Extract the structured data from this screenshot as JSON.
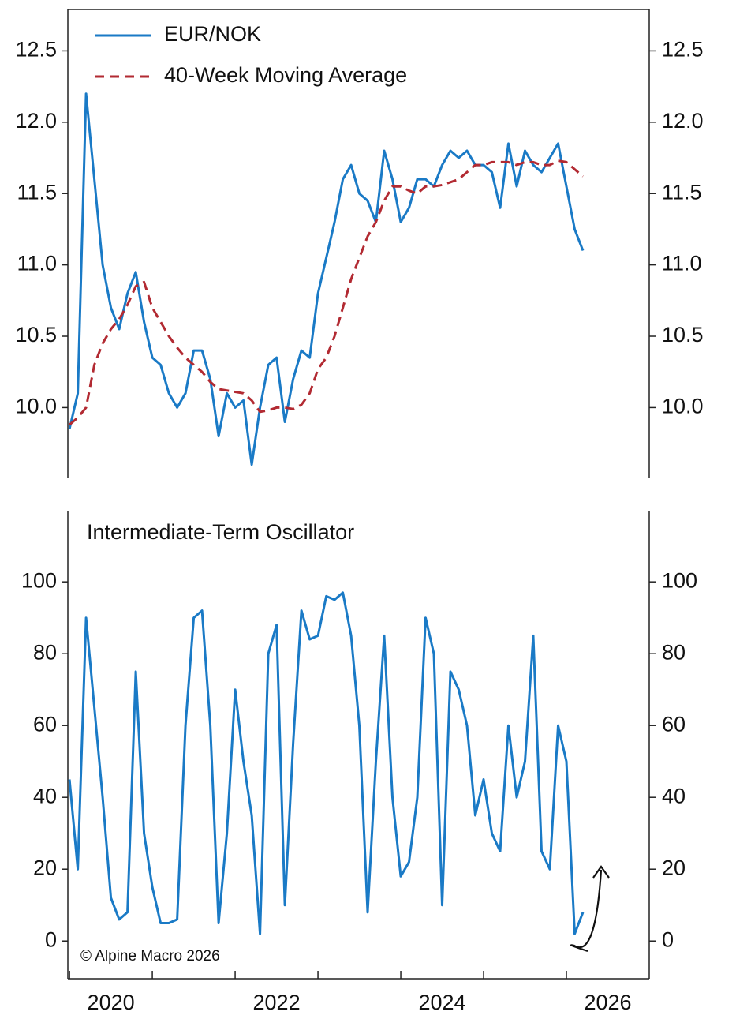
{
  "chart_data": [
    {
      "type": "line",
      "x": [
        2020.0,
        2020.1,
        2020.2,
        2020.3,
        2020.4,
        2020.5,
        2020.6,
        2020.7,
        2020.8,
        2020.9,
        2021.0,
        2021.1,
        2021.2,
        2021.3,
        2021.4,
        2021.5,
        2021.6,
        2021.7,
        2021.8,
        2021.9,
        2022.0,
        2022.1,
        2022.2,
        2022.3,
        2022.4,
        2022.5,
        2022.6,
        2022.7,
        2022.8,
        2022.9,
        2023.0,
        2023.1,
        2023.2,
        2023.3,
        2023.4,
        2023.5,
        2023.6,
        2023.7,
        2023.8,
        2023.9,
        2024.0,
        2024.1,
        2024.2,
        2024.3,
        2024.4,
        2024.5,
        2024.6,
        2024.7,
        2024.8,
        2024.9,
        2025.0,
        2025.1,
        2025.2,
        2025.3,
        2025.4,
        2025.5,
        2025.6,
        2025.7,
        2025.8,
        2025.9,
        2026.0,
        2026.1,
        2026.2
      ],
      "series": [
        {
          "name": "EUR/NOK",
          "color": "#1a7ac6",
          "dash": false,
          "values": [
            9.85,
            10.1,
            12.2,
            11.6,
            11.0,
            10.7,
            10.55,
            10.8,
            10.95,
            10.6,
            10.35,
            10.3,
            10.1,
            10.0,
            10.1,
            10.4,
            10.4,
            10.2,
            9.8,
            10.1,
            10.0,
            10.05,
            9.6,
            10.0,
            10.3,
            10.35,
            9.9,
            10.2,
            10.4,
            10.35,
            10.8,
            11.05,
            11.3,
            11.6,
            11.7,
            11.5,
            11.45,
            11.3,
            11.8,
            11.6,
            11.3,
            11.4,
            11.6,
            11.6,
            11.55,
            11.7,
            11.8,
            11.75,
            11.8,
            11.7,
            11.7,
            11.65,
            11.4,
            11.85,
            11.55,
            11.8,
            11.7,
            11.65,
            11.75,
            11.85,
            11.55,
            11.25,
            11.1
          ]
        },
        {
          "name": "40-Week Moving Average",
          "color": "#b22a32",
          "dash": true,
          "values": [
            9.88,
            9.93,
            10.0,
            10.3,
            10.45,
            10.55,
            10.62,
            10.72,
            10.85,
            10.88,
            10.7,
            10.6,
            10.5,
            10.42,
            10.35,
            10.3,
            10.25,
            10.18,
            10.13,
            10.12,
            10.11,
            10.1,
            10.05,
            9.97,
            9.98,
            10.0,
            10.0,
            9.99,
            10.02,
            10.1,
            10.27,
            10.35,
            10.5,
            10.7,
            10.9,
            11.05,
            11.2,
            11.3,
            11.45,
            11.55,
            11.55,
            11.52,
            11.5,
            11.55,
            11.55,
            11.56,
            11.58,
            11.6,
            11.65,
            11.7,
            11.7,
            11.72,
            11.72,
            11.72,
            11.7,
            11.72,
            11.72,
            11.7,
            11.7,
            11.73,
            11.72,
            11.67,
            11.62
          ]
        }
      ],
      "xlim": [
        2019.98,
        2027
      ],
      "ylim": [
        9.51,
        12.79
      ],
      "yticks": [
        {
          "value": 10,
          "label": "10.0"
        },
        10.5,
        {
          "value": 11,
          "label": "11.0"
        },
        11.5,
        {
          "value": 12,
          "label": "12.0"
        },
        12.5
      ],
      "legend": "upper left"
    },
    {
      "type": "line",
      "title": "Intermediate-Term Oscillator",
      "annotation": "© Alpine Macro 2026",
      "x": [
        2020.0,
        2020.1,
        2020.2,
        2020.3,
        2020.4,
        2020.5,
        2020.6,
        2020.7,
        2020.8,
        2020.9,
        2021.0,
        2021.1,
        2021.2,
        2021.3,
        2021.4,
        2021.5,
        2021.6,
        2021.7,
        2021.8,
        2021.9,
        2022.0,
        2022.1,
        2022.2,
        2022.3,
        2022.4,
        2022.5,
        2022.6,
        2022.7,
        2022.8,
        2022.9,
        2023.0,
        2023.1,
        2023.2,
        2023.3,
        2023.4,
        2023.5,
        2023.6,
        2023.7,
        2023.8,
        2023.9,
        2024.0,
        2024.1,
        2024.2,
        2024.3,
        2024.4,
        2024.5,
        2024.6,
        2024.7,
        2024.8,
        2024.9,
        2025.0,
        2025.1,
        2025.2,
        2025.3,
        2025.4,
        2025.5,
        2025.6,
        2025.7,
        2025.8,
        2025.9,
        2026.0,
        2026.1,
        2026.2
      ],
      "series": [
        {
          "name": "Intermediate-Term Oscillator",
          "color": "#1a7ac6",
          "dash": false,
          "values": [
            45,
            20,
            90,
            65,
            40,
            12,
            6,
            8,
            75,
            30,
            15,
            5,
            5,
            6,
            60,
            90,
            92,
            60,
            5,
            30,
            70,
            50,
            35,
            2,
            80,
            88,
            10,
            55,
            92,
            84,
            85,
            96,
            95,
            97,
            85,
            60,
            8,
            50,
            85,
            40,
            18,
            22,
            40,
            90,
            80,
            10,
            75,
            70,
            60,
            35,
            45,
            30,
            25,
            60,
            40,
            50,
            85,
            25,
            20,
            60,
            50,
            2,
            8
          ]
        }
      ],
      "xlim": [
        2019.98,
        2027
      ],
      "ylim": [
        -10.5,
        119.6
      ],
      "yticks": [
        0,
        20,
        40,
        60,
        80,
        100
      ],
      "xticks": [
        {
          "value": 2020.5,
          "label": "2020"
        },
        {
          "value": 2022.5,
          "label": "2022"
        },
        {
          "value": 2024.5,
          "label": "2024"
        },
        {
          "value": 2026.5,
          "label": "2026"
        }
      ],
      "year_ticks": [
        2020,
        2021,
        2022,
        2023,
        2024,
        2025,
        2026
      ]
    }
  ]
}
